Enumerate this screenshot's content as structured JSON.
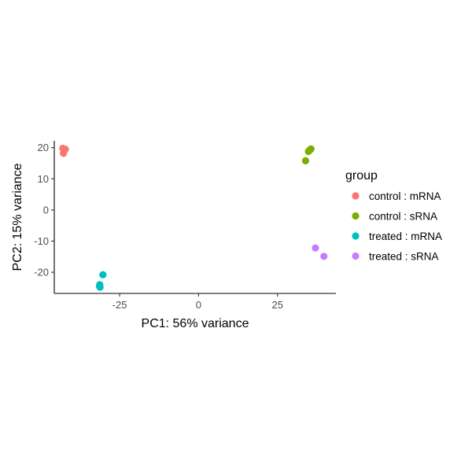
{
  "chart_data": {
    "type": "scatter",
    "title": "",
    "xlabel": "PC1: 56% variance",
    "ylabel": "PC2: 15% variance",
    "xlim": [
      -45.7,
      43.5
    ],
    "ylim": [
      -26.8,
      22.2
    ],
    "xticks": [
      -25,
      0,
      25
    ],
    "yticks": [
      -20,
      -10,
      0,
      10,
      20
    ],
    "grid": false,
    "legend": {
      "title": "group",
      "position": "right"
    },
    "series": [
      {
        "name": "control : mRNA",
        "color": "#F8766D",
        "points": [
          {
            "x": -43.0,
            "y": 19.8
          },
          {
            "x": -42.2,
            "y": 19.5
          },
          {
            "x": -42.6,
            "y": 19.0
          },
          {
            "x": -42.8,
            "y": 18.2
          }
        ]
      },
      {
        "name": "control : sRNA",
        "color": "#7CAE00",
        "points": [
          {
            "x": 35.6,
            "y": 19.6
          },
          {
            "x": 35.3,
            "y": 19.3
          },
          {
            "x": 34.8,
            "y": 18.8
          },
          {
            "x": 33.9,
            "y": 15.8
          }
        ]
      },
      {
        "name": "treated : mRNA",
        "color": "#00BFC4",
        "points": [
          {
            "x": -30.3,
            "y": -20.8
          },
          {
            "x": -31.3,
            "y": -24.0
          },
          {
            "x": -31.4,
            "y": -24.5
          },
          {
            "x": -31.2,
            "y": -24.8
          }
        ]
      },
      {
        "name": "treated : sRNA",
        "color": "#C77CFF",
        "points": [
          {
            "x": 37.0,
            "y": -12.2
          },
          {
            "x": 39.7,
            "y": -14.9
          }
        ]
      }
    ]
  }
}
